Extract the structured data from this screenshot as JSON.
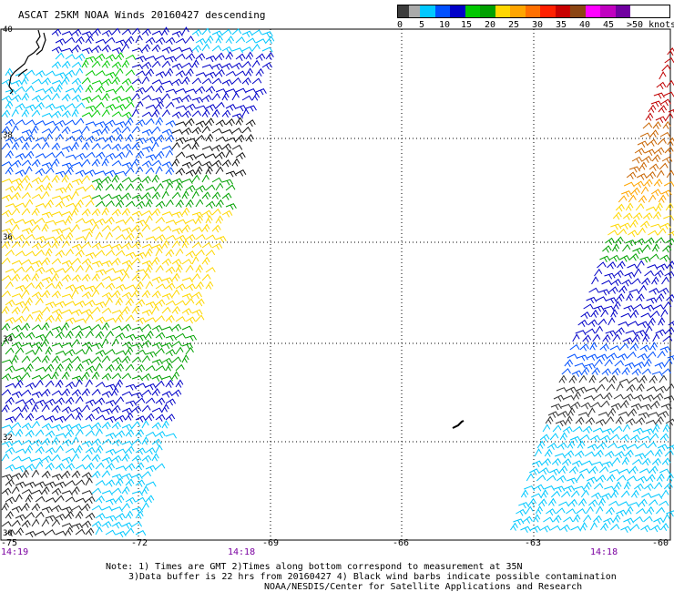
{
  "title": "ASCAT 25KM NOAA Winds 20160427 descending",
  "legend": {
    "colors": [
      "#3c3c3c",
      "#aaaaaa",
      "#00c8ff",
      "#0050ff",
      "#0000c8",
      "#00c800",
      "#00a000",
      "#ffd700",
      "#ffa500",
      "#ff7000",
      "#ff2000",
      "#c80000",
      "#8b4513",
      "#ff00ff",
      "#c000c0",
      "#7000a0"
    ],
    "labels": [
      {
        "text": "0",
        "pos": 0
      },
      {
        "text": "5",
        "pos": 24
      },
      {
        "text": "10",
        "pos": 46
      },
      {
        "text": "15",
        "pos": 70
      },
      {
        "text": "20",
        "pos": 96
      },
      {
        "text": "25",
        "pos": 122
      },
      {
        "text": "30",
        "pos": 148
      },
      {
        "text": "35",
        "pos": 174
      },
      {
        "text": "40",
        "pos": 200
      },
      {
        "text": "45",
        "pos": 226
      },
      {
        "text": ">50 knots",
        "pos": 252
      }
    ]
  },
  "map": {
    "lat_labels": [
      "40",
      "38",
      "36",
      "34",
      "32",
      "30"
    ],
    "lon_labels": [
      "-75",
      "-72",
      "-69",
      "-66",
      "-63",
      "-60"
    ],
    "time_labels": [
      "14:19",
      "14:18",
      "14:18"
    ],
    "coastline_color": "#000000",
    "grid_color": "#000000"
  },
  "notes": [
    "Note: 1) Times are GMT 2)Times along bottom correspond to measurement at 35N",
    "3)Data buffer is 22 hrs from 20160427 4) Black wind barbs indicate possible contamination",
    "NOAA/NESDIS/Center for Satellite Applications and Research"
  ]
}
